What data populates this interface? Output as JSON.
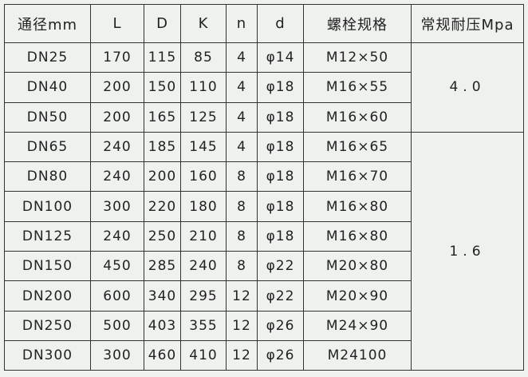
{
  "headers": [
    "通径mm",
    "L",
    "D",
    "K",
    "n",
    "d",
    "螺栓规格",
    "常规耐压Mpa"
  ],
  "rows": [
    [
      "DN25",
      "170",
      "115",
      "85",
      "4",
      "φ14",
      "M12×50"
    ],
    [
      "DN40",
      "200",
      "150",
      "110",
      "4",
      "φ18",
      "M16×55"
    ],
    [
      "DN50",
      "200",
      "165",
      "125",
      "4",
      "φ18",
      "M16×60"
    ],
    [
      "DN65",
      "240",
      "185",
      "145",
      "4",
      "φ18",
      "M16×65"
    ],
    [
      "DN80",
      "240",
      "200",
      "160",
      "8",
      "φ18",
      "M16×70"
    ],
    [
      "DN100",
      "300",
      "220",
      "180",
      "8",
      "φ18",
      "M16×80"
    ],
    [
      "DN125",
      "240",
      "250",
      "210",
      "8",
      "φ18",
      "M16×80"
    ],
    [
      "DN150",
      "450",
      "285",
      "240",
      "8",
      "φ22",
      "M20×80"
    ],
    [
      "DN200",
      "600",
      "340",
      "295",
      "12",
      "φ22",
      "M20×90"
    ],
    [
      "DN250",
      "500",
      "403",
      "355",
      "12",
      "φ26",
      "M24×90"
    ],
    [
      "DN300",
      "300",
      "460",
      "410",
      "12",
      "φ26",
      "M24100"
    ]
  ],
  "pressure": [
    {
      "value": "4.0",
      "rows": 3
    },
    {
      "value": "1.6",
      "rows": 8
    }
  ]
}
